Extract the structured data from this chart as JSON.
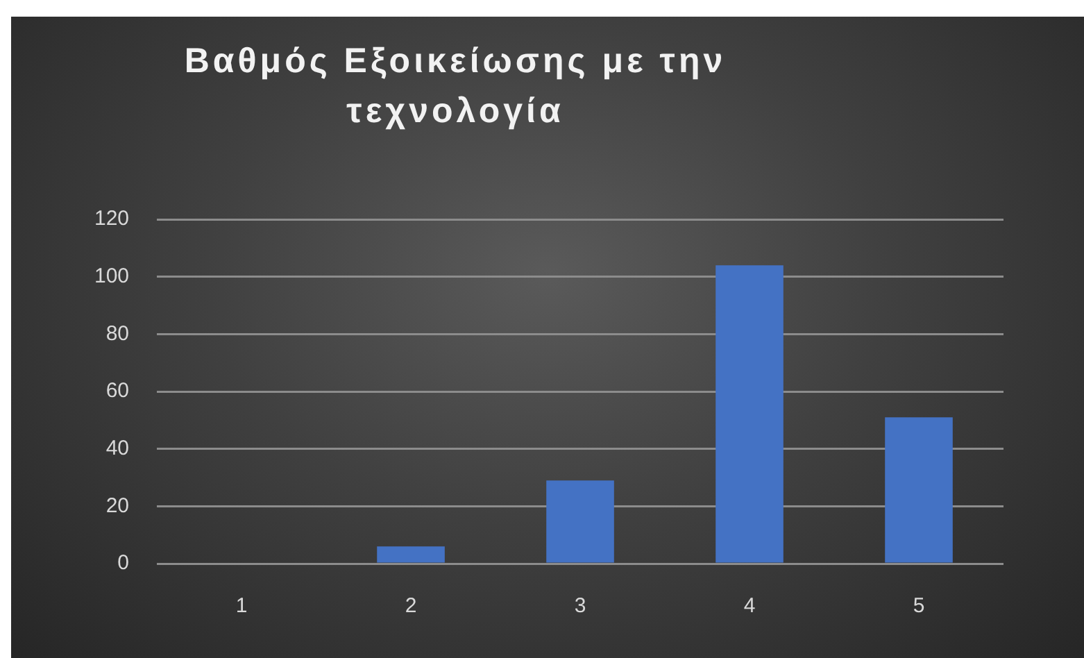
{
  "chart_data": {
    "type": "bar",
    "title": "Βαθμός Εξοικείωσης με την τεχνολογία",
    "categories": [
      "1",
      "2",
      "3",
      "4",
      "5"
    ],
    "values": [
      0,
      6,
      29,
      104,
      51
    ],
    "color": "#4472c4",
    "ylim": [
      0,
      120
    ],
    "yticks": [
      0,
      20,
      40,
      60,
      80,
      100,
      120
    ],
    "grid": "y"
  }
}
